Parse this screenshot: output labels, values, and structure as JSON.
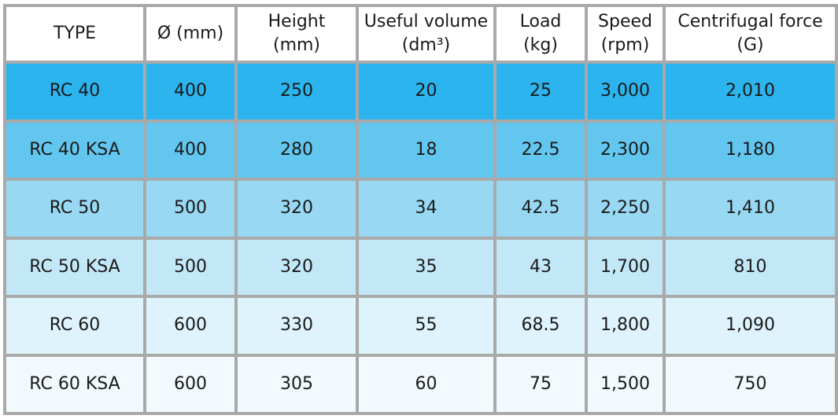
{
  "table": {
    "headers": [
      {
        "line1": "TYPE",
        "line2": ""
      },
      {
        "line1": "Ø (mm)",
        "line2": ""
      },
      {
        "line1": "Height",
        "line2": "(mm)"
      },
      {
        "line1": "Useful volume",
        "line2": "(dm³)"
      },
      {
        "line1": "Load",
        "line2": "(kg)"
      },
      {
        "line1": "Speed",
        "line2": "(rpm)"
      },
      {
        "line1": "Centrifugal force",
        "line2": "(G)"
      }
    ],
    "rows": [
      [
        "RC 40",
        "400",
        "250",
        "20",
        "25",
        "3,000",
        "2,010"
      ],
      [
        "RC 40 KSA",
        "400",
        "280",
        "18",
        "22.5",
        "2,300",
        "1,180"
      ],
      [
        "RC 50",
        "500",
        "320",
        "34",
        "42.5",
        "2,250",
        "1,410"
      ],
      [
        "RC 50 KSA",
        "500",
        "320",
        "35",
        "43",
        "1,700",
        "810"
      ],
      [
        "RC 60",
        "600",
        "330",
        "55",
        "68.5",
        "1,800",
        "1,090"
      ],
      [
        "RC 60 KSA",
        "600",
        "305",
        "60",
        "75",
        "1,500",
        "750"
      ]
    ],
    "row_colors": [
      "#2cb4ee",
      "#63c6ef",
      "#98d8f2",
      "#c2e8f8",
      "#def3fb",
      "#f2fafd"
    ],
    "header_color": "#ffffff",
    "border_color": "#a9a9a9"
  }
}
